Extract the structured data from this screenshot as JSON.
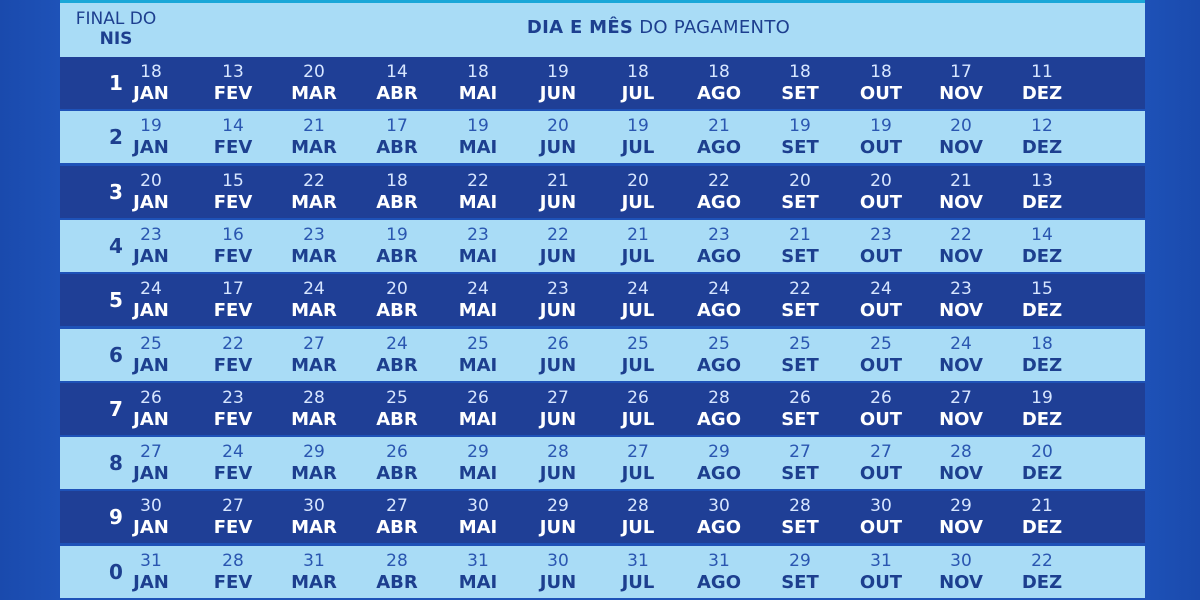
{
  "header": {
    "nis_line1": "FINAL DO",
    "nis_line2": "NIS",
    "title_bold": "DIA E MÊS",
    "title_rest": "DO PAGAMENTO"
  },
  "months": [
    "JAN",
    "FEV",
    "MAR",
    "ABR",
    "MAI",
    "JUN",
    "JUL",
    "AGO",
    "SET",
    "OUT",
    "NOV",
    "DEZ"
  ],
  "rows": [
    {
      "nis": "1",
      "days": [
        "18",
        "13",
        "20",
        "14",
        "18",
        "19",
        "18",
        "18",
        "18",
        "18",
        "17",
        "11"
      ]
    },
    {
      "nis": "2",
      "days": [
        "19",
        "14",
        "21",
        "17",
        "19",
        "20",
        "19",
        "21",
        "19",
        "19",
        "20",
        "12"
      ]
    },
    {
      "nis": "3",
      "days": [
        "20",
        "15",
        "22",
        "18",
        "22",
        "21",
        "20",
        "22",
        "20",
        "20",
        "21",
        "13"
      ]
    },
    {
      "nis": "4",
      "days": [
        "23",
        "16",
        "23",
        "19",
        "23",
        "22",
        "21",
        "23",
        "21",
        "23",
        "22",
        "14"
      ]
    },
    {
      "nis": "5",
      "days": [
        "24",
        "17",
        "24",
        "20",
        "24",
        "23",
        "24",
        "24",
        "22",
        "24",
        "23",
        "15"
      ]
    },
    {
      "nis": "6",
      "days": [
        "25",
        "22",
        "27",
        "24",
        "25",
        "26",
        "25",
        "25",
        "25",
        "25",
        "24",
        "18"
      ]
    },
    {
      "nis": "7",
      "days": [
        "26",
        "23",
        "28",
        "25",
        "26",
        "27",
        "26",
        "28",
        "26",
        "26",
        "27",
        "19"
      ]
    },
    {
      "nis": "8",
      "days": [
        "27",
        "24",
        "29",
        "26",
        "29",
        "28",
        "27",
        "29",
        "27",
        "27",
        "28",
        "20"
      ]
    },
    {
      "nis": "9",
      "days": [
        "30",
        "27",
        "30",
        "27",
        "30",
        "29",
        "28",
        "30",
        "28",
        "30",
        "29",
        "21"
      ]
    },
    {
      "nis": "0",
      "days": [
        "31",
        "28",
        "31",
        "28",
        "31",
        "30",
        "31",
        "31",
        "29",
        "31",
        "30",
        "22"
      ]
    }
  ]
}
